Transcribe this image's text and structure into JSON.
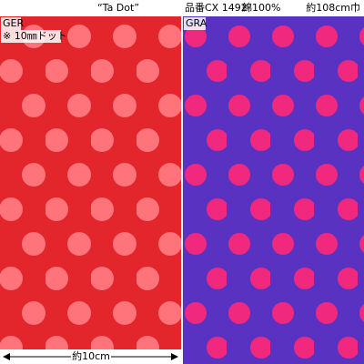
{
  "header": {
    "title": "“Ta Dot”",
    "product_no": "品番CX 1492",
    "material": "綿100%",
    "width": "約108cm巾"
  },
  "panels": [
    {
      "label": "GER",
      "note": "※ 10㎜ドット"
    },
    {
      "label": "GRA"
    }
  ],
  "scale": {
    "label": "約10cm"
  }
}
